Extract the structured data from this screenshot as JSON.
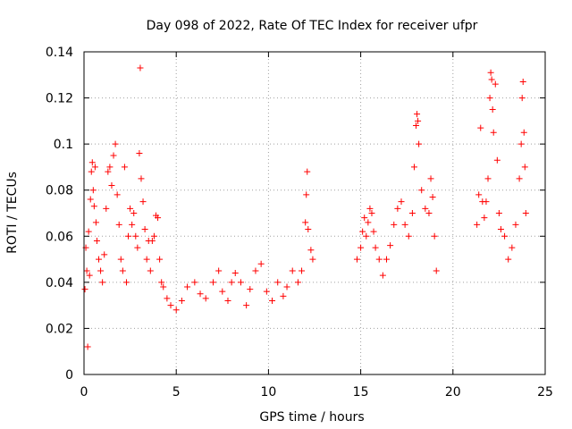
{
  "chart_data": {
    "type": "scatter",
    "title": "Day 098 of 2022, Rate Of TEC Index for receiver ufpr",
    "xlabel": "GPS time / hours",
    "ylabel": "ROTI / TECUs",
    "xlim": [
      0,
      25
    ],
    "ylim": [
      0,
      0.14
    ],
    "xticks": [
      0,
      5,
      10,
      15,
      20,
      25
    ],
    "yticks": [
      0,
      0.02,
      0.04,
      0.06,
      0.08,
      0.1,
      0.12,
      0.14
    ],
    "xtick_labels": [
      "0",
      "5",
      "10",
      "15",
      "20",
      "25"
    ],
    "ytick_labels": [
      "0",
      "0.02",
      "0.04",
      "0.06",
      "0.08",
      "0.1",
      "0.12",
      "0.14"
    ],
    "grid": true,
    "marker": "+",
    "colors": {
      "series": "#ff0000",
      "grid": "#a0a0a0",
      "axes": "#000000"
    },
    "series": [
      {
        "points": [
          [
            0.05,
            0.037
          ],
          [
            0.1,
            0.055
          ],
          [
            0.15,
            0.045
          ],
          [
            0.2,
            0.012
          ],
          [
            0.25,
            0.062
          ],
          [
            0.3,
            0.043
          ],
          [
            0.35,
            0.076
          ],
          [
            0.4,
            0.088
          ],
          [
            0.45,
            0.092
          ],
          [
            0.5,
            0.08
          ],
          [
            0.55,
            0.073
          ],
          [
            0.6,
            0.09
          ],
          [
            0.65,
            0.066
          ],
          [
            0.7,
            0.058
          ],
          [
            0.8,
            0.05
          ],
          [
            0.9,
            0.045
          ],
          [
            1.0,
            0.04
          ],
          [
            1.1,
            0.052
          ],
          [
            1.2,
            0.072
          ],
          [
            1.3,
            0.088
          ],
          [
            1.4,
            0.09
          ],
          [
            1.5,
            0.082
          ],
          [
            1.6,
            0.095
          ],
          [
            1.7,
            0.1
          ],
          [
            1.8,
            0.078
          ],
          [
            1.9,
            0.065
          ],
          [
            2.0,
            0.05
          ],
          [
            2.1,
            0.045
          ],
          [
            2.2,
            0.09
          ],
          [
            2.3,
            0.04
          ],
          [
            2.4,
            0.06
          ],
          [
            2.5,
            0.072
          ],
          [
            2.6,
            0.065
          ],
          [
            2.7,
            0.07
          ],
          [
            2.8,
            0.06
          ],
          [
            2.9,
            0.055
          ],
          [
            3.0,
            0.096
          ],
          [
            3.05,
            0.133
          ],
          [
            3.1,
            0.085
          ],
          [
            3.2,
            0.075
          ],
          [
            3.3,
            0.063
          ],
          [
            3.4,
            0.05
          ],
          [
            3.5,
            0.058
          ],
          [
            3.6,
            0.045
          ],
          [
            3.7,
            0.058
          ],
          [
            3.8,
            0.06
          ],
          [
            3.9,
            0.069
          ],
          [
            4.0,
            0.068
          ],
          [
            4.1,
            0.05
          ],
          [
            4.2,
            0.04
          ],
          [
            4.3,
            0.038
          ],
          [
            4.5,
            0.033
          ],
          [
            4.7,
            0.03
          ],
          [
            5.0,
            0.028
          ],
          [
            5.3,
            0.032
          ],
          [
            5.6,
            0.038
          ],
          [
            6.0,
            0.04
          ],
          [
            6.3,
            0.035
          ],
          [
            6.6,
            0.033
          ],
          [
            7.0,
            0.04
          ],
          [
            7.3,
            0.045
          ],
          [
            7.5,
            0.036
          ],
          [
            7.8,
            0.032
          ],
          [
            8.0,
            0.04
          ],
          [
            8.2,
            0.044
          ],
          [
            8.5,
            0.04
          ],
          [
            8.8,
            0.03
          ],
          [
            9.0,
            0.037
          ],
          [
            9.3,
            0.045
          ],
          [
            9.6,
            0.048
          ],
          [
            9.9,
            0.036
          ],
          [
            10.2,
            0.032
          ],
          [
            10.5,
            0.04
          ],
          [
            10.8,
            0.034
          ],
          [
            11.0,
            0.038
          ],
          [
            11.3,
            0.045
          ],
          [
            11.6,
            0.04
          ],
          [
            11.8,
            0.045
          ],
          [
            12.0,
            0.066
          ],
          [
            12.05,
            0.078
          ],
          [
            12.1,
            0.088
          ],
          [
            12.15,
            0.063
          ],
          [
            12.3,
            0.054
          ],
          [
            12.4,
            0.05
          ],
          [
            14.8,
            0.05
          ],
          [
            15.0,
            0.055
          ],
          [
            15.1,
            0.062
          ],
          [
            15.2,
            0.068
          ],
          [
            15.3,
            0.06
          ],
          [
            15.4,
            0.066
          ],
          [
            15.5,
            0.072
          ],
          [
            15.6,
            0.07
          ],
          [
            15.7,
            0.062
          ],
          [
            15.8,
            0.055
          ],
          [
            16.0,
            0.05
          ],
          [
            16.2,
            0.043
          ],
          [
            16.4,
            0.05
          ],
          [
            16.6,
            0.056
          ],
          [
            16.8,
            0.065
          ],
          [
            17.0,
            0.072
          ],
          [
            17.2,
            0.075
          ],
          [
            17.4,
            0.065
          ],
          [
            17.6,
            0.06
          ],
          [
            17.8,
            0.07
          ],
          [
            17.9,
            0.09
          ],
          [
            18.0,
            0.108
          ],
          [
            18.05,
            0.113
          ],
          [
            18.1,
            0.11
          ],
          [
            18.15,
            0.1
          ],
          [
            18.3,
            0.08
          ],
          [
            18.5,
            0.072
          ],
          [
            18.7,
            0.07
          ],
          [
            18.8,
            0.085
          ],
          [
            18.9,
            0.077
          ],
          [
            19.0,
            0.06
          ],
          [
            19.1,
            0.045
          ],
          [
            21.3,
            0.065
          ],
          [
            21.4,
            0.078
          ],
          [
            21.5,
            0.107
          ],
          [
            21.6,
            0.075
          ],
          [
            21.7,
            0.068
          ],
          [
            21.8,
            0.075
          ],
          [
            21.9,
            0.085
          ],
          [
            22.0,
            0.12
          ],
          [
            22.05,
            0.131
          ],
          [
            22.1,
            0.128
          ],
          [
            22.15,
            0.115
          ],
          [
            22.2,
            0.105
          ],
          [
            22.3,
            0.126
          ],
          [
            22.4,
            0.093
          ],
          [
            22.5,
            0.07
          ],
          [
            22.6,
            0.063
          ],
          [
            22.8,
            0.06
          ],
          [
            23.0,
            0.05
          ],
          [
            23.2,
            0.055
          ],
          [
            23.4,
            0.065
          ],
          [
            23.6,
            0.085
          ],
          [
            23.7,
            0.1
          ],
          [
            23.75,
            0.12
          ],
          [
            23.8,
            0.127
          ],
          [
            23.85,
            0.105
          ],
          [
            23.9,
            0.09
          ],
          [
            23.95,
            0.07
          ]
        ]
      }
    ]
  }
}
